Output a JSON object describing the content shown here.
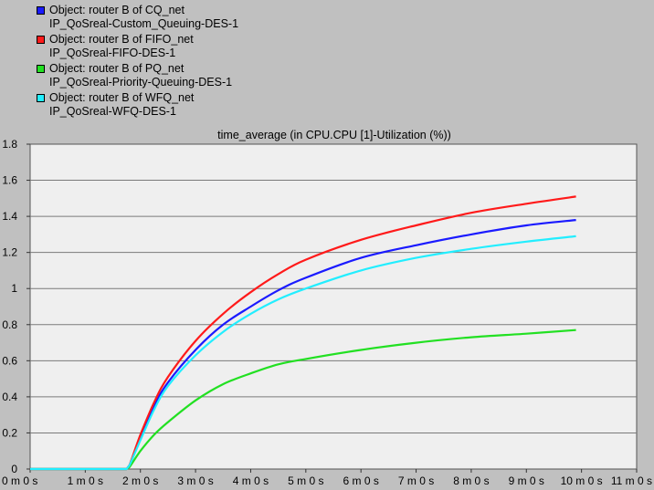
{
  "legend": [
    {
      "line1": "Object: router B of CQ_net",
      "line2": "IP_QoSreal-Custom_Queuing-DES-1",
      "color": "#1a1aff"
    },
    {
      "line1": "Object: router B of FIFO_net",
      "line2": "IP_QoSreal-FIFO-DES-1",
      "color": "#ff1a1a"
    },
    {
      "line1": "Object: router B of PQ_net",
      "line2": "IP_QoSreal-Priority-Queuing-DES-1",
      "color": "#22e022"
    },
    {
      "line1": "Object: router B of WFQ_net",
      "line2": "IP_QoSreal-WFQ-DES-1",
      "color": "#22eeff"
    }
  ],
  "chart_data": {
    "type": "line",
    "title": "time_average (in CPU.CPU [1]-Utilization (%))",
    "xlabel": "",
    "ylabel": "",
    "x_unit": "minutes",
    "xlim": [
      0,
      11
    ],
    "ylim": [
      0,
      1.8
    ],
    "x_ticks": [
      0,
      1,
      2,
      3,
      4,
      5,
      6,
      7,
      8,
      9,
      10,
      11
    ],
    "x_tick_labels": [
      "0 m 0 s",
      "1 m 0 s",
      "2 m 0 s",
      "3 m 0 s",
      "4 m 0 s",
      "5 m 0 s",
      "6 m 0 s",
      "7 m 0 s",
      "8 m 0 s",
      "9 m 0 s",
      "10 m 0 s",
      "11 m 0 s"
    ],
    "y_ticks": [
      0,
      0.2,
      0.4,
      0.6,
      0.8,
      1,
      1.2,
      1.4,
      1.6,
      1.8
    ],
    "y_tick_labels": [
      "0",
      "0.2",
      "0.4",
      "0.6",
      "0.8",
      "1",
      "1.2",
      "1.4",
      "1.6",
      "1.8"
    ],
    "grid": true,
    "legend_position": "top-left, above plot",
    "series": [
      {
        "name": "Object: router B of CQ_net IP_QoSreal-Custom_Queuing-DES-1",
        "color": "#1a1aff",
        "x": [
          0,
          1.75,
          1.8,
          2.0,
          2.25,
          2.5,
          3.0,
          3.5,
          4.0,
          4.5,
          5.0,
          6.0,
          7.0,
          8.0,
          9.0,
          9.9
        ],
        "y": [
          0,
          0,
          0.02,
          0.17,
          0.35,
          0.48,
          0.66,
          0.8,
          0.9,
          0.99,
          1.06,
          1.17,
          1.24,
          1.3,
          1.35,
          1.38
        ]
      },
      {
        "name": "Object: router B of FIFO_net IP_QoSreal-FIFO-DES-1",
        "color": "#ff1a1a",
        "x": [
          0,
          1.75,
          1.8,
          2.0,
          2.25,
          2.5,
          3.0,
          3.5,
          4.0,
          4.5,
          5.0,
          6.0,
          7.0,
          8.0,
          9.0,
          9.9
        ],
        "y": [
          0,
          0,
          0.02,
          0.19,
          0.37,
          0.51,
          0.71,
          0.86,
          0.98,
          1.08,
          1.16,
          1.27,
          1.35,
          1.42,
          1.47,
          1.51
        ]
      },
      {
        "name": "Object: router B of PQ_net IP_QoSreal-Priority-Queuing-DES-1",
        "color": "#22e022",
        "x": [
          0,
          1.75,
          1.8,
          2.0,
          2.25,
          2.5,
          3.0,
          3.5,
          4.0,
          4.5,
          5.0,
          6.0,
          7.0,
          8.0,
          9.0,
          9.9
        ],
        "y": [
          0,
          0,
          0.01,
          0.1,
          0.19,
          0.26,
          0.38,
          0.47,
          0.53,
          0.58,
          0.61,
          0.66,
          0.7,
          0.73,
          0.75,
          0.77
        ]
      },
      {
        "name": "Object: router B of WFQ_net IP_QoSreal-WFQ-DES-1",
        "color": "#22eeff",
        "x": [
          0,
          1.75,
          1.8,
          2.0,
          2.25,
          2.5,
          3.0,
          3.5,
          4.0,
          4.5,
          5.0,
          6.0,
          7.0,
          8.0,
          9.0,
          9.9
        ],
        "y": [
          0,
          0,
          0.02,
          0.16,
          0.33,
          0.46,
          0.63,
          0.76,
          0.86,
          0.94,
          1.0,
          1.1,
          1.17,
          1.22,
          1.26,
          1.29
        ]
      }
    ]
  }
}
